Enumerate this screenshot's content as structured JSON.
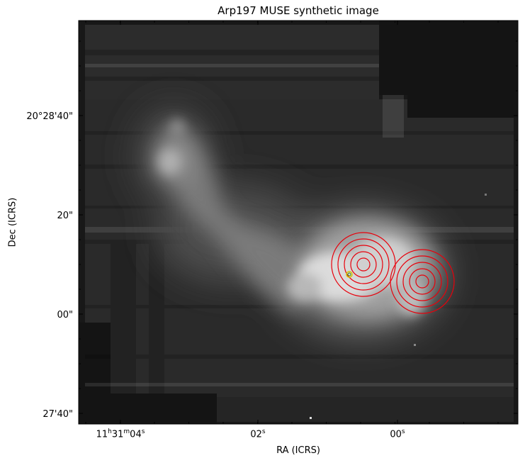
{
  "title": "Arp197 MUSE synthetic image",
  "xlabel": "RA (ICRS)",
  "ylabel": "Dec (ICRS)",
  "x_ticks": [
    {
      "base": "11",
      "h": "h",
      "mid": "31",
      "m": "m",
      "val": "04",
      "s": "s"
    },
    {
      "val": "02",
      "s": "s"
    },
    {
      "val": "00",
      "s": "s"
    }
  ],
  "y_ticks": [
    "20°28'40\"",
    "20\"",
    "00\"",
    "27'40\""
  ],
  "image": {
    "colormap": "grayscale",
    "description_colors": {
      "background": "#141414",
      "bright": "#f2f2f2"
    },
    "contour_color": "#e8000b",
    "marker_color": "#d4c800"
  },
  "apertures": [
    {
      "name": "aperture-1",
      "rings": 5
    },
    {
      "name": "aperture-2",
      "rings": 5
    }
  ]
}
